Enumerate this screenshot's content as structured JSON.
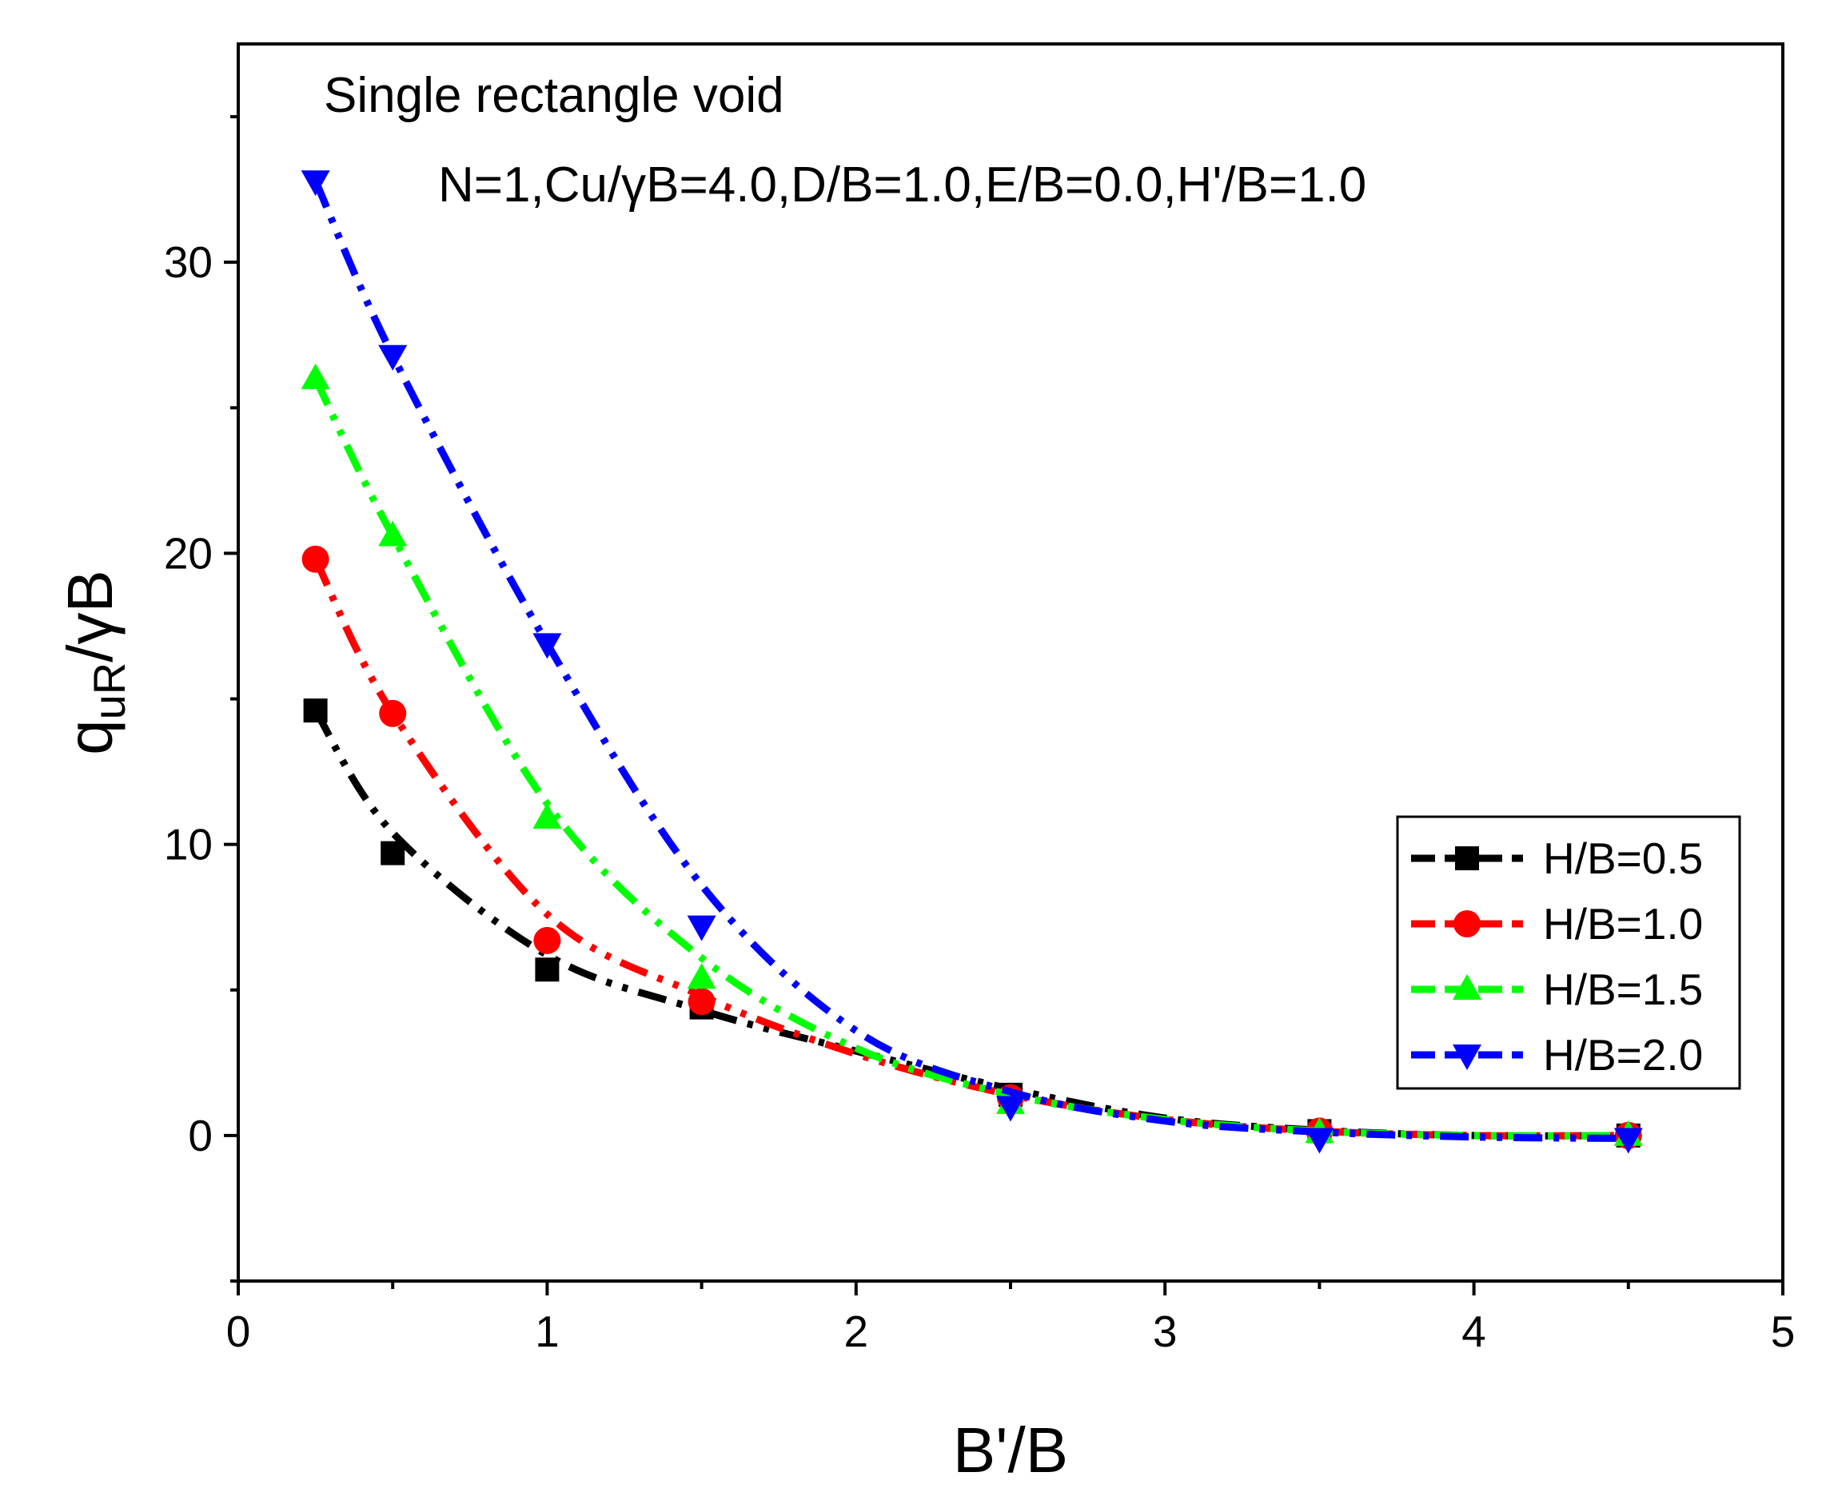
{
  "chart_data": {
    "type": "line",
    "title": "",
    "annotations": [
      "Single rectangle void",
      "N=1,Cu/γB=4.0,D/B=1.0,E/B=0.0,H'/B=1.0"
    ],
    "xlabel": "B'/B",
    "ylabel": {
      "base": "q",
      "sub": "uR",
      "suffix": "/γB"
    },
    "xlim": [
      0,
      5
    ],
    "ylim": [
      -5,
      37.5
    ],
    "xticks": [
      0,
      1,
      2,
      3,
      4,
      5
    ],
    "yticks": [
      0,
      10,
      20,
      30
    ],
    "legend_position": "right",
    "series": [
      {
        "name": "H/B=0.5",
        "color": "#000000",
        "marker": "square",
        "x": [
          0.25,
          0.5,
          1.0,
          1.5,
          2.5,
          3.5,
          4.5
        ],
        "y": [
          14.6,
          9.7,
          5.7,
          4.4,
          1.4,
          0.15,
          0.0
        ],
        "curve_y": [
          14.6,
          10.4,
          6.2,
          4.3,
          2.9,
          1.6,
          0.6,
          0.18,
          0.0,
          0.0
        ]
      },
      {
        "name": "H/B=1.0",
        "color": "#ff0000",
        "marker": "circle",
        "x": [
          0.25,
          0.5,
          1.0,
          1.5,
          2.5,
          3.5,
          4.5
        ],
        "y": [
          19.8,
          14.5,
          6.7,
          4.6,
          1.3,
          0.15,
          0.0
        ],
        "curve_y": [
          19.8,
          14.5,
          7.6,
          4.8,
          2.8,
          1.4,
          0.55,
          0.15,
          0.0,
          0.0
        ]
      },
      {
        "name": "H/B=1.5",
        "color": "#00ff00",
        "marker": "triangle-up",
        "x": [
          0.25,
          0.5,
          1.0,
          1.5,
          2.5,
          3.5,
          4.5
        ],
        "y": [
          26.0,
          20.6,
          10.9,
          5.4,
          1.1,
          0.1,
          0.0
        ],
        "curve_y": [
          26.0,
          20.6,
          11.4,
          6.1,
          3.0,
          1.4,
          0.55,
          0.15,
          0.0,
          0.0
        ]
      },
      {
        "name": "H/B=2.0",
        "color": "#0000ff",
        "marker": "triangle-down",
        "x": [
          0.25,
          0.5,
          1.0,
          1.5,
          2.5,
          3.5,
          4.5
        ],
        "y": [
          32.8,
          26.8,
          16.9,
          7.2,
          1.0,
          -0.1,
          -0.1
        ],
        "curve_y": [
          32.8,
          26.8,
          16.9,
          8.6,
          3.6,
          1.5,
          0.5,
          0.12,
          -0.05,
          -0.1
        ]
      }
    ],
    "curve_x": [
      0.25,
      0.5,
      1.0,
      1.5,
      2.0,
      2.5,
      3.0,
      3.5,
      4.0,
      4.5
    ]
  }
}
